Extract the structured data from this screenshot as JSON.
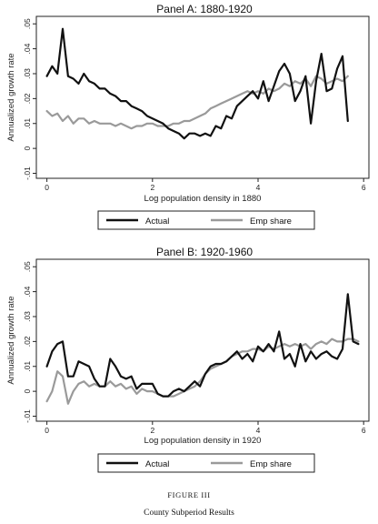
{
  "figure_label": "Figure III",
  "caption": "County Subperiod Results",
  "colors": {
    "actual": "#111111",
    "emp_share": "#9a9a9a"
  },
  "chart_data": [
    {
      "type": "line",
      "title": "Panel A: 1880-1920",
      "xlabel": "Log population density in 1880",
      "ylabel": "Annualized growth rate",
      "xlim": [
        -0.2,
        6.1
      ],
      "ylim": [
        -0.012,
        0.053
      ],
      "xticks": [
        0,
        2,
        4,
        6
      ],
      "xtick_labels": [
        "0",
        "2",
        "4",
        "6"
      ],
      "yticks": [
        -0.01,
        0,
        0.01,
        0.02,
        0.03,
        0.04,
        0.05
      ],
      "ytick_labels": [
        "-.01",
        "0",
        ".01",
        ".02",
        ".03",
        ".04",
        ".05"
      ],
      "grid": false,
      "legend": "bottom",
      "series": [
        {
          "name": "Actual",
          "x": [
            0,
            0.1,
            0.2,
            0.3,
            0.4,
            0.5,
            0.6,
            0.7,
            0.8,
            0.9,
            1.0,
            1.1,
            1.2,
            1.3,
            1.4,
            1.5,
            1.6,
            1.7,
            1.8,
            1.9,
            2.0,
            2.1,
            2.2,
            2.3,
            2.4,
            2.5,
            2.6,
            2.7,
            2.8,
            2.9,
            3.0,
            3.1,
            3.2,
            3.3,
            3.4,
            3.5,
            3.6,
            3.7,
            3.8,
            3.9,
            4.0,
            4.1,
            4.2,
            4.3,
            4.4,
            4.5,
            4.6,
            4.7,
            4.8,
            4.9,
            5.0,
            5.1,
            5.2,
            5.3,
            5.4,
            5.5,
            5.6,
            5.7
          ],
          "values": [
            0.029,
            0.033,
            0.03,
            0.048,
            0.029,
            0.028,
            0.026,
            0.03,
            0.027,
            0.026,
            0.024,
            0.024,
            0.022,
            0.021,
            0.019,
            0.019,
            0.017,
            0.016,
            0.015,
            0.013,
            0.012,
            0.011,
            0.01,
            0.008,
            0.007,
            0.006,
            0.004,
            0.006,
            0.006,
            0.005,
            0.006,
            0.005,
            0.009,
            0.008,
            0.013,
            0.012,
            0.017,
            0.019,
            0.021,
            0.023,
            0.02,
            0.027,
            0.019,
            0.025,
            0.031,
            0.034,
            0.03,
            0.019,
            0.023,
            0.029,
            0.01,
            0.027,
            0.038,
            0.023,
            0.024,
            0.032,
            0.037,
            0.011
          ]
        },
        {
          "name": "Emp share",
          "x": [
            0,
            0.1,
            0.2,
            0.3,
            0.4,
            0.5,
            0.6,
            0.7,
            0.8,
            0.9,
            1.0,
            1.1,
            1.2,
            1.3,
            1.4,
            1.5,
            1.6,
            1.7,
            1.8,
            1.9,
            2.0,
            2.1,
            2.2,
            2.3,
            2.4,
            2.5,
            2.6,
            2.7,
            2.8,
            2.9,
            3.0,
            3.1,
            3.2,
            3.3,
            3.4,
            3.5,
            3.6,
            3.7,
            3.8,
            3.9,
            4.0,
            4.1,
            4.2,
            4.3,
            4.4,
            4.5,
            4.6,
            4.7,
            4.8,
            4.9,
            5.0,
            5.1,
            5.2,
            5.3,
            5.4,
            5.5,
            5.6,
            5.7
          ],
          "values": [
            0.015,
            0.013,
            0.014,
            0.011,
            0.013,
            0.01,
            0.012,
            0.012,
            0.01,
            0.011,
            0.01,
            0.01,
            0.01,
            0.009,
            0.01,
            0.009,
            0.008,
            0.009,
            0.009,
            0.01,
            0.01,
            0.009,
            0.009,
            0.009,
            0.01,
            0.01,
            0.011,
            0.011,
            0.012,
            0.013,
            0.014,
            0.016,
            0.017,
            0.018,
            0.019,
            0.02,
            0.021,
            0.022,
            0.023,
            0.022,
            0.023,
            0.022,
            0.024,
            0.023,
            0.024,
            0.026,
            0.025,
            0.027,
            0.026,
            0.028,
            0.025,
            0.029,
            0.028,
            0.026,
            0.027,
            0.028,
            0.027,
            0.029
          ]
        }
      ]
    },
    {
      "type": "line",
      "title": "Panel B: 1920-1960",
      "xlabel": "Log population density in 1920",
      "ylabel": "Annualized growth rate",
      "xlim": [
        -0.2,
        6.1
      ],
      "ylim": [
        -0.012,
        0.053
      ],
      "xticks": [
        0,
        2,
        4,
        6
      ],
      "xtick_labels": [
        "0",
        "2",
        "4",
        "6"
      ],
      "yticks": [
        -0.01,
        0,
        0.01,
        0.02,
        0.03,
        0.04,
        0.05
      ],
      "ytick_labels": [
        "-.01",
        "0",
        ".01",
        ".02",
        ".03",
        ".04",
        ".05"
      ],
      "grid": false,
      "legend": "bottom",
      "series": [
        {
          "name": "Actual",
          "x": [
            0,
            0.1,
            0.2,
            0.3,
            0.4,
            0.5,
            0.6,
            0.7,
            0.8,
            0.9,
            1.0,
            1.1,
            1.2,
            1.3,
            1.4,
            1.5,
            1.6,
            1.7,
            1.8,
            1.9,
            2.0,
            2.1,
            2.2,
            2.3,
            2.4,
            2.5,
            2.6,
            2.7,
            2.8,
            2.9,
            3.0,
            3.1,
            3.2,
            3.3,
            3.4,
            3.5,
            3.6,
            3.7,
            3.8,
            3.9,
            4.0,
            4.1,
            4.2,
            4.3,
            4.4,
            4.5,
            4.6,
            4.7,
            4.8,
            4.9,
            5.0,
            5.1,
            5.2,
            5.3,
            5.4,
            5.5,
            5.6,
            5.7,
            5.8,
            5.9
          ],
          "values": [
            0.01,
            0.016,
            0.019,
            0.02,
            0.006,
            0.006,
            0.012,
            0.011,
            0.01,
            0.005,
            0.002,
            0.002,
            0.013,
            0.01,
            0.006,
            0.005,
            0.006,
            0.001,
            0.003,
            0.003,
            0.003,
            -0.001,
            -0.002,
            -0.002,
            0.0,
            0.001,
            0.0,
            0.002,
            0.004,
            0.002,
            0.007,
            0.01,
            0.011,
            0.011,
            0.012,
            0.014,
            0.016,
            0.013,
            0.015,
            0.012,
            0.018,
            0.016,
            0.019,
            0.016,
            0.024,
            0.013,
            0.015,
            0.01,
            0.019,
            0.012,
            0.016,
            0.013,
            0.015,
            0.016,
            0.014,
            0.013,
            0.017,
            0.039,
            0.02,
            0.019
          ]
        },
        {
          "name": "Emp share",
          "x": [
            0,
            0.1,
            0.2,
            0.3,
            0.4,
            0.5,
            0.6,
            0.7,
            0.8,
            0.9,
            1.0,
            1.1,
            1.2,
            1.3,
            1.4,
            1.5,
            1.6,
            1.7,
            1.8,
            1.9,
            2.0,
            2.1,
            2.2,
            2.3,
            2.4,
            2.5,
            2.6,
            2.7,
            2.8,
            2.9,
            3.0,
            3.1,
            3.2,
            3.3,
            3.4,
            3.5,
            3.6,
            3.7,
            3.8,
            3.9,
            4.0,
            4.1,
            4.2,
            4.3,
            4.4,
            4.5,
            4.6,
            4.7,
            4.8,
            4.9,
            5.0,
            5.1,
            5.2,
            5.3,
            5.4,
            5.5,
            5.6,
            5.7,
            5.8,
            5.9
          ],
          "values": [
            -0.004,
            0.0,
            0.008,
            0.006,
            -0.005,
            0.0,
            0.003,
            0.004,
            0.002,
            0.003,
            0.002,
            0.002,
            0.004,
            0.002,
            0.003,
            0.001,
            0.002,
            -0.001,
            0.001,
            0.0,
            0.0,
            -0.001,
            -0.002,
            -0.002,
            -0.002,
            -0.001,
            0.0,
            0.001,
            0.002,
            0.004,
            0.007,
            0.009,
            0.01,
            0.011,
            0.012,
            0.014,
            0.015,
            0.016,
            0.016,
            0.017,
            0.017,
            0.016,
            0.018,
            0.017,
            0.018,
            0.019,
            0.018,
            0.019,
            0.018,
            0.019,
            0.017,
            0.019,
            0.02,
            0.019,
            0.021,
            0.02,
            0.02,
            0.021,
            0.021,
            0.02
          ]
        }
      ]
    }
  ]
}
